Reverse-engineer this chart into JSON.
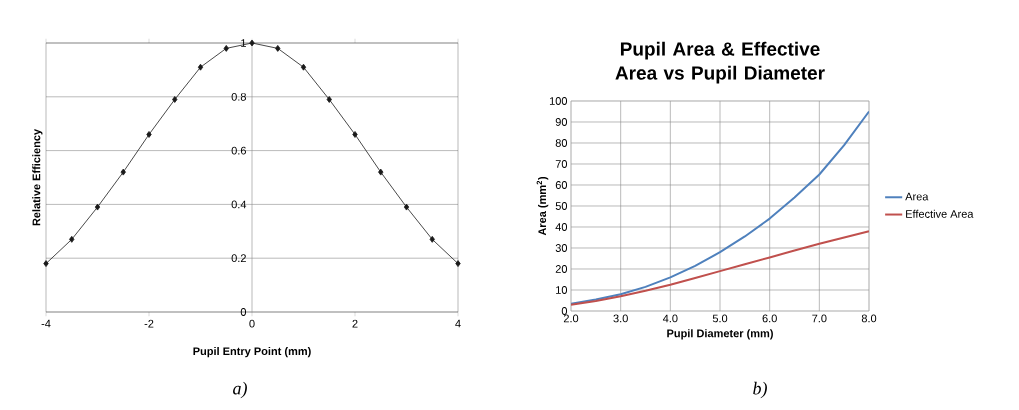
{
  "chart_data": [
    {
      "type": "line",
      "xlabel": "Pupil Entry Point (mm)",
      "ylabel": "Relative Efficiency",
      "x": [
        -4,
        -3.5,
        -3,
        -2.5,
        -2,
        -1.5,
        -1,
        -0.5,
        0,
        0.5,
        1,
        1.5,
        2,
        2.5,
        3,
        3.5,
        4
      ],
      "series": [
        {
          "color": "#1a1a1a",
          "values": [
            0.18,
            0.27,
            0.39,
            0.52,
            0.66,
            0.79,
            0.91,
            0.98,
            1.0,
            0.98,
            0.91,
            0.79,
            0.66,
            0.52,
            0.39,
            0.27,
            0.18
          ]
        }
      ],
      "xlim": [
        -4,
        4
      ],
      "ylim": [
        0,
        1
      ],
      "xticks": [
        -4,
        -2,
        0,
        2,
        4
      ],
      "yticks": [
        0,
        0.2,
        0.4,
        0.6,
        0.8,
        1
      ],
      "grid": "y",
      "marker": "diamond",
      "legend": false,
      "annotations": [
        "a)"
      ]
    },
    {
      "type": "line",
      "title": "Pupil Area & Effective Area vs Pupil Diameter",
      "xlabel": "Pupil Diameter (mm)",
      "ylabel": "Area (mm$^{2}$)",
      "x": [
        2,
        2.5,
        3,
        3.5,
        4,
        4.5,
        5,
        5.5,
        6,
        6.5,
        7,
        7.5,
        8
      ],
      "series": [
        {
          "name": "Area",
          "color": "#4f81bd",
          "values": [
            3.5,
            5.5,
            8,
            11.5,
            16,
            21.5,
            28,
            35.5,
            44,
            54,
            65,
            79,
            95
          ]
        },
        {
          "name": "Effective Area",
          "color": "#c0504d",
          "values": [
            3,
            4.8,
            7,
            9.6,
            12.5,
            15.7,
            19,
            22.3,
            25.5,
            28.8,
            32,
            35,
            38
          ]
        }
      ],
      "xlim": [
        2,
        8
      ],
      "ylim": [
        0,
        100
      ],
      "xticks": [
        {
          "value": 2,
          "label": "2.0"
        },
        {
          "value": 3,
          "label": "3.0"
        },
        {
          "value": 4,
          "label": "4.0"
        },
        {
          "value": 5,
          "label": "5.0"
        },
        {
          "value": 6,
          "label": "6.0"
        },
        {
          "value": 7,
          "label": "7.0"
        },
        {
          "value": 8,
          "label": "8.0"
        }
      ],
      "yticks": [
        0,
        10,
        20,
        30,
        40,
        50,
        60,
        70,
        80,
        90,
        100
      ],
      "grid": true,
      "marker": "none",
      "legend": "right",
      "annotations": [
        "b)"
      ]
    }
  ]
}
